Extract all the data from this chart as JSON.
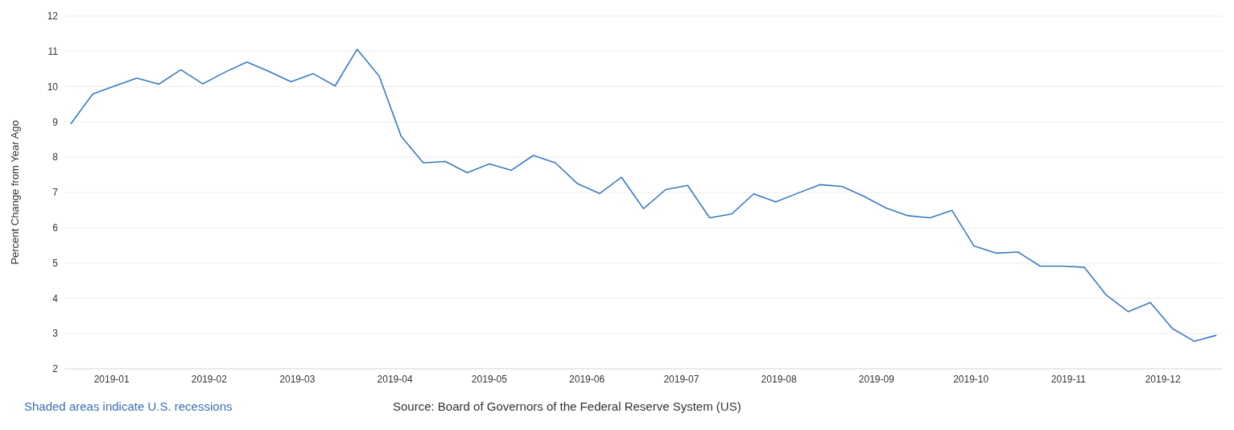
{
  "chart_data": {
    "type": "line",
    "ylabel": "Percent Change from Year Ago",
    "annotations": [
      "Shaded areas indicate U.S. recessions",
      "Source: Board of Governors of the Federal Reserve System (US)"
    ],
    "x": [
      "2018-12-19",
      "2018-12-26",
      "2019-01-02",
      "2019-01-09",
      "2019-01-16",
      "2019-01-23",
      "2019-01-30",
      "2019-02-06",
      "2019-02-13",
      "2019-02-20",
      "2019-02-27",
      "2019-03-06",
      "2019-03-13",
      "2019-03-20",
      "2019-03-27",
      "2019-04-03",
      "2019-04-10",
      "2019-04-17",
      "2019-04-24",
      "2019-05-01",
      "2019-05-08",
      "2019-05-15",
      "2019-05-22",
      "2019-05-29",
      "2019-06-05",
      "2019-06-12",
      "2019-06-19",
      "2019-06-26",
      "2019-07-03",
      "2019-07-10",
      "2019-07-17",
      "2019-07-24",
      "2019-07-31",
      "2019-08-07",
      "2019-08-14",
      "2019-08-21",
      "2019-08-28",
      "2019-09-04",
      "2019-09-11",
      "2019-09-18",
      "2019-09-25",
      "2019-10-02",
      "2019-10-09",
      "2019-10-16",
      "2019-10-23",
      "2019-10-30",
      "2019-11-06",
      "2019-11-13",
      "2019-11-20",
      "2019-11-27",
      "2019-12-04",
      "2019-12-11",
      "2019-12-18"
    ],
    "series": [
      {
        "color": "#3a7bbf",
        "values": [
          8.94,
          9.79,
          10.02,
          10.24,
          10.07,
          10.48,
          10.08,
          10.41,
          10.7,
          10.43,
          10.14,
          10.37,
          10.02,
          11.06,
          10.3,
          8.59,
          7.84,
          7.88,
          7.56,
          7.81,
          7.63,
          8.05,
          7.84,
          7.25,
          6.97,
          7.43,
          6.54,
          7.08,
          7.2,
          6.28,
          6.39,
          6.96,
          6.73,
          6.98,
          7.22,
          7.17,
          6.89,
          6.56,
          6.34,
          6.28,
          6.49,
          5.48,
          5.28,
          5.31,
          4.91,
          4.91,
          4.88,
          4.09,
          3.62,
          3.88,
          3.14,
          2.78,
          2.95
        ]
      }
    ],
    "xlim": [
      "2018-12-17",
      "2019-12-20"
    ],
    "xticks": [
      "2019-01",
      "2019-02",
      "2019-03",
      "2019-04",
      "2019-05",
      "2019-06",
      "2019-07",
      "2019-08",
      "2019-09",
      "2019-10",
      "2019-11",
      "2019-12"
    ],
    "ylim": [
      2,
      12
    ],
    "yticks": [
      2,
      3,
      4,
      5,
      6,
      7,
      8,
      9,
      10,
      11,
      12
    ],
    "grid": "y"
  }
}
